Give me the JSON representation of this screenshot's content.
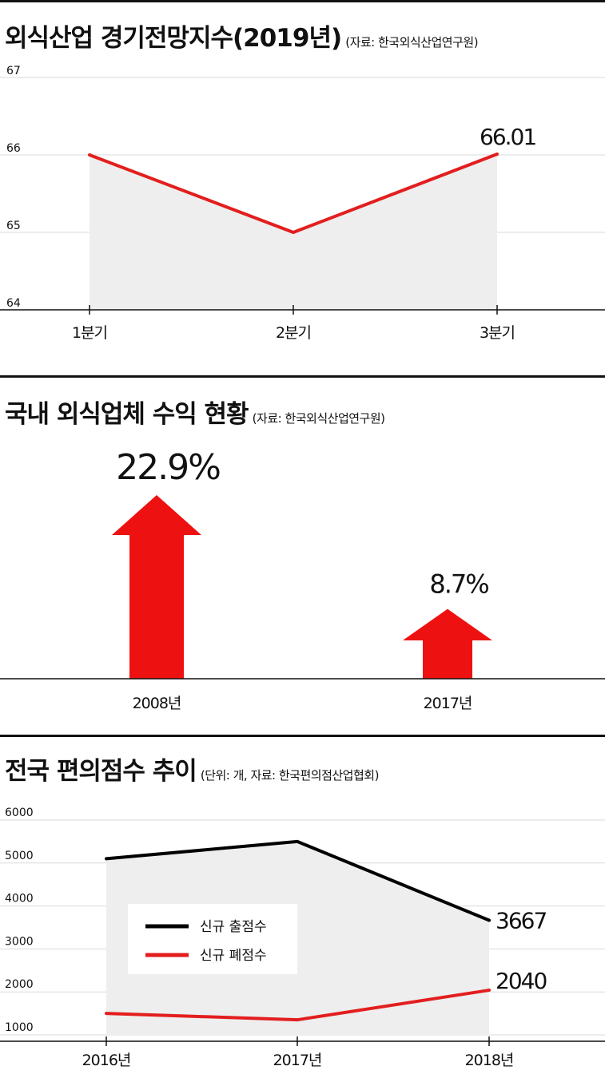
{
  "chart_data": [
    {
      "type": "area",
      "title": "외식산업 경기전망지수(2019년)",
      "source": "(자료: 한국외식산업연구원)",
      "categories": [
        "1분기",
        "2분기",
        "3분기"
      ],
      "values": [
        66.0,
        65.0,
        66.01
      ],
      "ylim": [
        64,
        67
      ],
      "yticks": [
        64,
        65,
        66,
        67
      ],
      "annotations": [
        {
          "category": "3분기",
          "label": "66.01"
        }
      ],
      "line_color": "#e31e1e",
      "fill_color": "#eeeeee"
    },
    {
      "type": "bar",
      "title": "국내 외식업체 수익 현황",
      "source": "(자료: 한국외식산업연구원)",
      "categories": [
        "2008년",
        "2017년"
      ],
      "values": [
        22.9,
        8.7
      ],
      "value_labels": [
        "22.9%",
        "8.7%"
      ],
      "bar_color": "#ee1111"
    },
    {
      "type": "line",
      "title": "전국 편의점수 추이",
      "source": "(단위: 개, 자료: 한국편의점산업협회)",
      "categories": [
        "2016년",
        "2017년",
        "2018년"
      ],
      "ylim": [
        1000,
        6000
      ],
      "yticks": [
        1000,
        2000,
        3000,
        4000,
        5000,
        6000
      ],
      "series": [
        {
          "name": "신규 출점수",
          "values": [
            5100,
            5500,
            3667
          ],
          "color": "#000000"
        },
        {
          "name": "신규 폐점수",
          "values": [
            1500,
            1350,
            2040
          ],
          "color": "#e31e1e"
        }
      ],
      "annotations": [
        {
          "category": "2018년",
          "label": "3667"
        },
        {
          "category": "2018년",
          "label": "2040"
        }
      ],
      "legend_position": "center-left",
      "fill_color": "#eeeeee"
    }
  ]
}
